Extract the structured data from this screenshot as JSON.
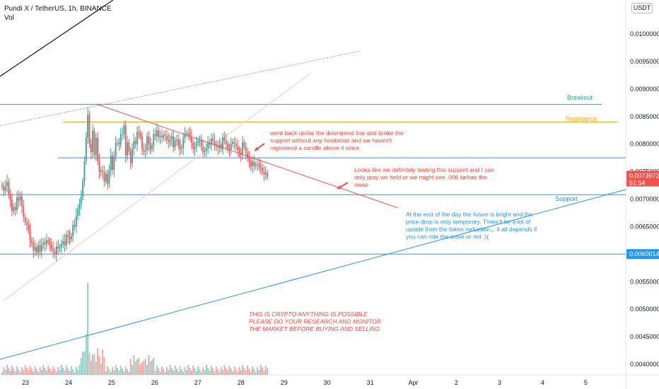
{
  "header": {
    "symbol_line": "Pundi X / TetherUS, 1h, BINANCE",
    "volume_label": "Vol"
  },
  "currency_button": "USDT",
  "colors": {
    "up": "#26a69a",
    "down": "#ef5350",
    "breakout": "#26a69a",
    "resistance": "#f5a623",
    "support": "#2196f3",
    "downtrend": "#ef5350",
    "price_tag": "#ef5350",
    "support_tag": "#2196f3"
  },
  "chart_data": {
    "type": "candlestick",
    "pair": "Pundi X / TetherUS",
    "interval": "1h",
    "exchange": "BINANCE",
    "ylim": [
      0.00366,
      0.01066
    ],
    "y_ticks": [
      "0.0100000",
      "0.0095000",
      "0.0090000",
      "0.0085000",
      "0.0080000",
      "0.0075000",
      "0.0070000",
      "0.0065000",
      "0.0060000",
      "0.0055000",
      "0.0050000",
      "0.0045000",
      "0.0040000"
    ],
    "x_ticks": [
      {
        "label": "23",
        "day": 23.0
      },
      {
        "label": "24",
        "day": 24.0
      },
      {
        "label": "25",
        "day": 25.0
      },
      {
        "label": "26",
        "day": 26.0
      },
      {
        "label": "27",
        "day": 27.0
      },
      {
        "label": "28",
        "day": 28.0
      },
      {
        "label": "29",
        "day": 29.0
      },
      {
        "label": "30",
        "day": 30.0
      },
      {
        "label": "31",
        "day": 31.0
      },
      {
        "label": "Apr",
        "day": 32.0
      },
      {
        "label": "2",
        "day": 33.0
      },
      {
        "label": "3",
        "day": 34.0
      },
      {
        "label": "4",
        "day": 35.0
      },
      {
        "label": "5",
        "day": 36.0
      }
    ],
    "last_price": {
      "value": "0.0073972",
      "countdown": "51:54"
    },
    "support_price": "0.0060014",
    "close_series": [
      0.00722,
      0.00715,
      0.00724,
      0.00731,
      0.00709,
      0.00698,
      0.00678,
      0.00686,
      0.0068,
      0.00703,
      0.00697,
      0.00705,
      0.00687,
      0.00668,
      0.00658,
      0.00653,
      0.00643,
      0.00624,
      0.00621,
      0.00606,
      0.00613,
      0.00603,
      0.00616,
      0.00605,
      0.00617,
      0.00621,
      0.00618,
      0.00625,
      0.00622,
      0.00617,
      0.0061,
      0.00605,
      0.006,
      0.00614,
      0.0061,
      0.00613,
      0.00618,
      0.00624,
      0.00616,
      0.00635,
      0.00632,
      0.00627,
      0.00633,
      0.00653,
      0.0065,
      0.0067,
      0.00683,
      0.00691,
      0.00704,
      0.00733,
      0.00769,
      0.00812,
      0.00853,
      0.00801,
      0.00785,
      0.00824,
      0.0078,
      0.00811,
      0.00769,
      0.00749,
      0.00752,
      0.00749,
      0.00732,
      0.00746,
      0.00728,
      0.00752,
      0.00779,
      0.00753,
      0.00778,
      0.00802,
      0.00803,
      0.00799,
      0.00818,
      0.00818,
      0.00834,
      0.00779,
      0.00803,
      0.00786,
      0.00765,
      0.00791,
      0.00806,
      0.008,
      0.00822,
      0.00819,
      0.00814,
      0.00791,
      0.00786,
      0.00788,
      0.00814,
      0.008,
      0.00791,
      0.00797,
      0.00818,
      0.00814,
      0.00825,
      0.00813,
      0.00815,
      0.00812,
      0.00817,
      0.00815,
      0.00807,
      0.00804,
      0.00809,
      0.00814,
      0.00794,
      0.00807,
      0.00808,
      0.00797,
      0.00791,
      0.00793,
      0.00811,
      0.00819,
      0.00818,
      0.0082,
      0.00813,
      0.00803,
      0.00791,
      0.00795,
      0.00802,
      0.00806,
      0.00807,
      0.00795,
      0.00786,
      0.00788,
      0.00792,
      0.00803,
      0.00799,
      0.0081,
      0.00806,
      0.008,
      0.00796,
      0.00793,
      0.00799,
      0.00791,
      0.00812,
      0.00806,
      0.008,
      0.00792,
      0.0079,
      0.008,
      0.00804,
      0.00801,
      0.00795,
      0.00789,
      0.00784,
      0.00781,
      0.00803,
      0.00795,
      0.00783,
      0.00774,
      0.00769,
      0.0076,
      0.00768,
      0.0076,
      0.00763,
      0.00764,
      0.00758,
      0.00757,
      0.00751,
      0.00745,
      0.00748,
      0.0074
    ],
    "volume_note": "relative bar heights",
    "annotations": [
      {
        "id": "note1",
        "text_lines": [
          "went back under the downtrend line and broke the",
          "support without any hesitation and we haven't",
          "registered a candle above it since"
        ],
        "color": "#f44336"
      },
      {
        "id": "note2",
        "text_lines": [
          "Looks like we definitely testing this support and I can",
          "only pray we hold or we might see .006 before the",
          "swap"
        ],
        "color": "#f44336"
      },
      {
        "id": "note3",
        "text_lines": [
          "At the end of the day the future is bright and the",
          "price drop is only temporary. There'll be a lot of",
          "upside from the token reduction... it all depends if",
          "you can ride the wave or not :)("
        ],
        "color": "#2196f3"
      },
      {
        "id": "note4",
        "text_lines": [
          "THIS IS CRYPTO ANYTHING IS POSSIBLE",
          "PLEASE DO YOUR RESEARCH AND MONITOR",
          "THE MARKET BEFORE BUYING AND SELLING"
        ],
        "color": "#f44336"
      }
    ],
    "levels": [
      {
        "name": "Breakout",
        "price": 0.00872,
        "color": "#26a69a"
      },
      {
        "name": "Resistance",
        "price": 0.0084,
        "color": "#f5a623"
      },
      {
        "name": "",
        "price": 0.00775,
        "color": "#2196f3"
      },
      {
        "name": "Support",
        "price": 0.00708,
        "color": "#2196f3"
      },
      {
        "name": "",
        "price": 0.0060014,
        "color": "#2196f3"
      }
    ]
  }
}
